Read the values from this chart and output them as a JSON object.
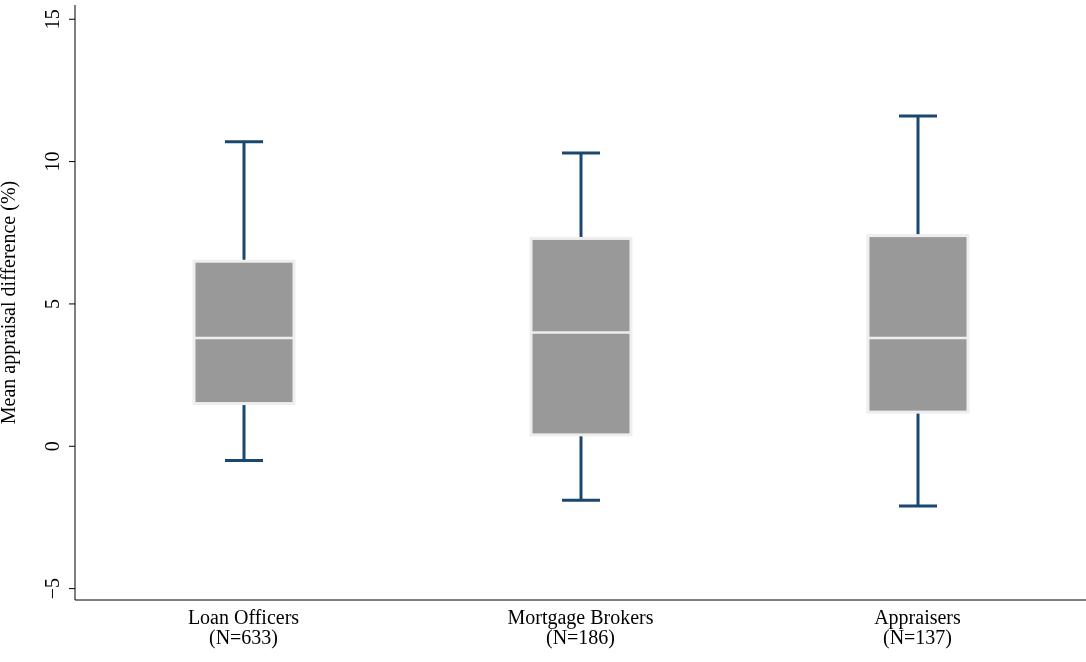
{
  "chart_data": {
    "type": "box",
    "ylabel": "Mean appraisal difference (%)",
    "categories": [
      "Loan Officers\n(N=633)",
      "Mortgage Brokers\n(N=186)",
      "Appraisers\n(N=137)"
    ],
    "boxes": [
      {
        "low": -0.5,
        "q1": 1.5,
        "median": 3.8,
        "q3": 6.5,
        "high": 10.7
      },
      {
        "low": -1.9,
        "q1": 0.4,
        "median": 4.0,
        "q3": 7.3,
        "high": 10.3
      },
      {
        "low": -2.1,
        "q1": 1.2,
        "median": 3.8,
        "q3": 7.4,
        "high": 11.6
      }
    ],
    "color": "#999999",
    "ylim": [
      -5.4,
      15.5
    ],
    "yticks": [
      {
        "value": -5,
        "label": "−5"
      },
      0,
      5,
      10,
      15
    ],
    "grid": false
  }
}
